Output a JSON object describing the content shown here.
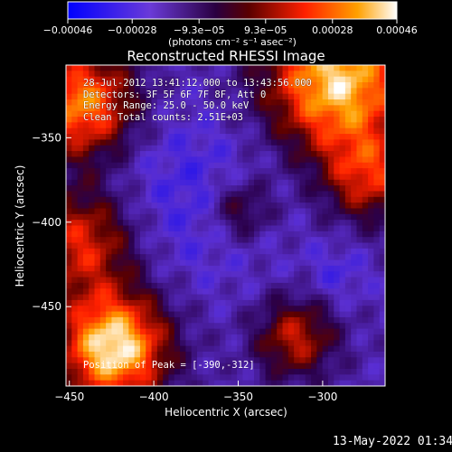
{
  "chart_data": {
    "type": "heatmap",
    "title": "Reconstructed RHESSI Image",
    "xlabel": "Heliocentric X (arcsec)",
    "ylabel": "Heliocentric Y (arcsec)",
    "xlim": [
      -452,
      -263
    ],
    "ylim": [
      -497,
      -307
    ],
    "x_ticks": [
      -450,
      -400,
      -350,
      -300
    ],
    "x_tick_labels": [
      "−450",
      "−400",
      "−350",
      "−300"
    ],
    "y_ticks": [
      -450,
      -400,
      -350
    ],
    "y_tick_labels": [
      "−450",
      "−400",
      "−350"
    ],
    "colorbar": {
      "range": [
        -0.00046,
        0.00046
      ],
      "ticks": [
        -0.00046,
        -0.00028,
        -9.3e-05,
        9.3e-05,
        0.00028,
        0.00046
      ],
      "tick_labels": [
        "−0.00046",
        "−0.00028",
        "−9.3e−05",
        "9.3e−05",
        "0.00028",
        "0.00046"
      ],
      "label": "(photons cm⁻² s⁻¹ asec⁻²)",
      "colors": [
        "#0000ff",
        "#5b2fd0",
        "#2a004a",
        "#5a0000",
        "#ff2000",
        "#ffa000",
        "#ffffff"
      ]
    },
    "info_lines": [
      "28-Jul-2012 13:41:12.000 to 13:43:56.000",
      "Detectors: 3F 5F 6F 7F 8F, Att 0",
      "Energy Range: 25.0 - 50.0 keV",
      "Clean     Total counts: 2.51E+03"
    ],
    "peak_text": "Position of Peak = [-390,-312]",
    "timestamp": "13-May-2022 01:34"
  }
}
